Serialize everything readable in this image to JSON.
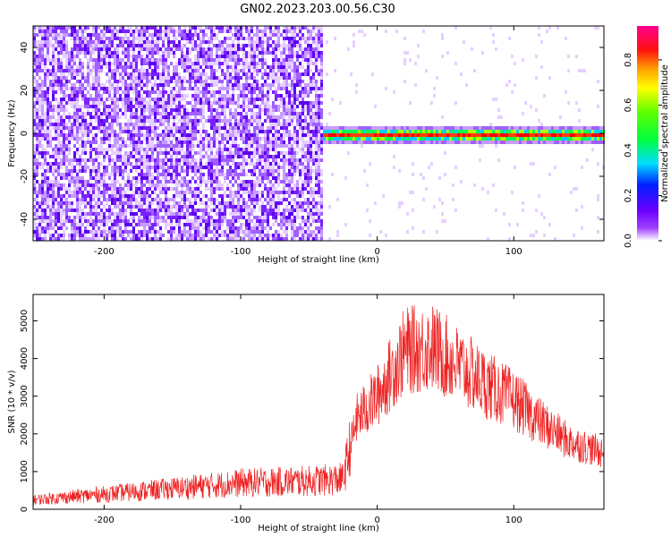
{
  "figure": {
    "title": "GN02.2023.203.00.56.C30"
  },
  "chart_data": [
    {
      "type": "heatmap",
      "title": "GN02.2023.203.00.56.C30",
      "xlabel": "Height of straight line (km)",
      "ylabel": "Frequency (Hz)",
      "xlim": [
        -252,
        166
      ],
      "ylim": [
        -50,
        50
      ],
      "xticks": [
        -200,
        -100,
        0,
        100
      ],
      "yticks": [
        -40,
        -20,
        0,
        20,
        40
      ],
      "colorbar": {
        "label": "Normalized spectral amplitude",
        "range": [
          0,
          0.95
        ],
        "ticks": [
          0.0,
          0.2,
          0.4,
          0.6,
          0.8
        ],
        "colormap": [
          "#ffffff",
          "#8800ff",
          "#0000ff",
          "#00ffff",
          "#00ff00",
          "#ffff00",
          "#ff0000",
          "#ff0088"
        ]
      },
      "regions": [
        {
          "x": [
            -252,
            -40
          ],
          "y": [
            -50,
            50
          ],
          "amplitude": "low-mid broadband noise"
        },
        {
          "x": [
            -40,
            166
          ],
          "y": [
            -3,
            3
          ],
          "amplitude": "high, concentrated near 0 Hz"
        }
      ],
      "grid": false
    },
    {
      "type": "line",
      "xlabel": "Height of straight line (km)",
      "ylabel": "SNR (10 * v/v)",
      "xlim": [
        -252,
        166
      ],
      "ylim": [
        0,
        5700
      ],
      "xticks": [
        -200,
        -100,
        0,
        100
      ],
      "yticks": [
        0,
        1000,
        2000,
        3000,
        4000,
        5000
      ],
      "color": "#ee2222",
      "envelope": {
        "x": [
          -252,
          -200,
          -150,
          -100,
          -50,
          -25,
          -20,
          -15,
          0,
          20,
          40,
          60,
          80,
          100,
          120,
          140,
          166
        ],
        "y": [
          250,
          400,
          550,
          700,
          750,
          800,
          1600,
          2400,
          3000,
          4200,
          4300,
          3800,
          3300,
          2900,
          2300,
          1800,
          1500
        ]
      },
      "grid": false
    }
  ]
}
